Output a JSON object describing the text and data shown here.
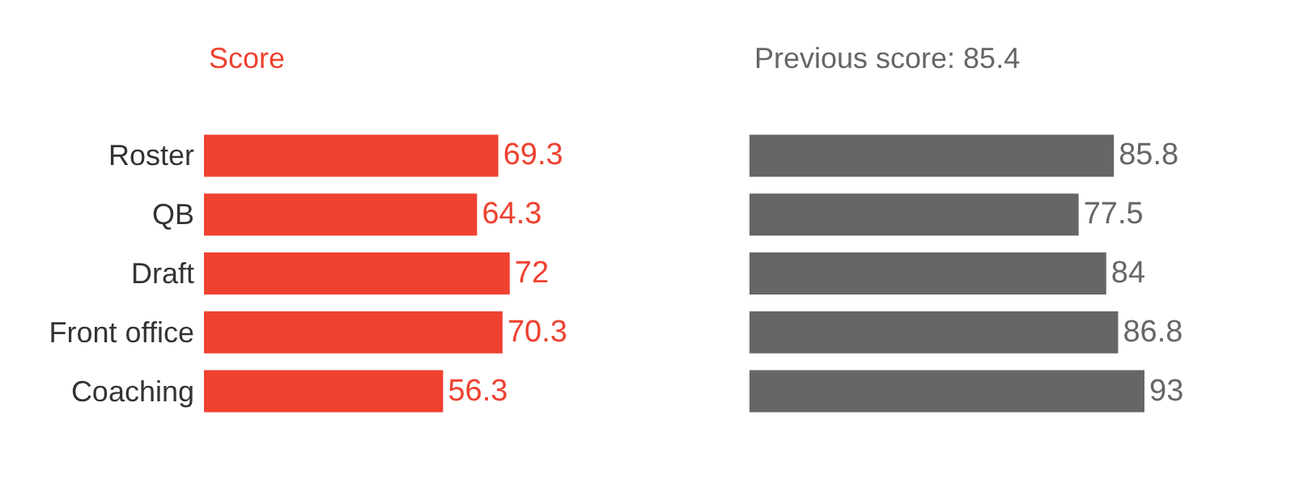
{
  "chart_data": [
    {
      "type": "bar",
      "orientation": "horizontal",
      "title": "Score",
      "categories": [
        "Roster",
        "QB",
        "Draft",
        "Front office",
        "Coaching"
      ],
      "series": [
        {
          "color": "#ef4130",
          "values": [
            69.3,
            64.3,
            72,
            70.3,
            56.3
          ]
        }
      ],
      "data_labels": true,
      "tick_labels": "y"
    },
    {
      "type": "bar",
      "orientation": "horizontal",
      "title": "Previous score: 85.4",
      "categories": [
        null,
        null,
        null,
        null,
        null
      ],
      "series": [
        {
          "color": "#666666",
          "values": [
            85.8,
            77.5,
            84,
            86.8,
            93
          ]
        }
      ],
      "data_labels": true,
      "tick_labels": false
    }
  ]
}
